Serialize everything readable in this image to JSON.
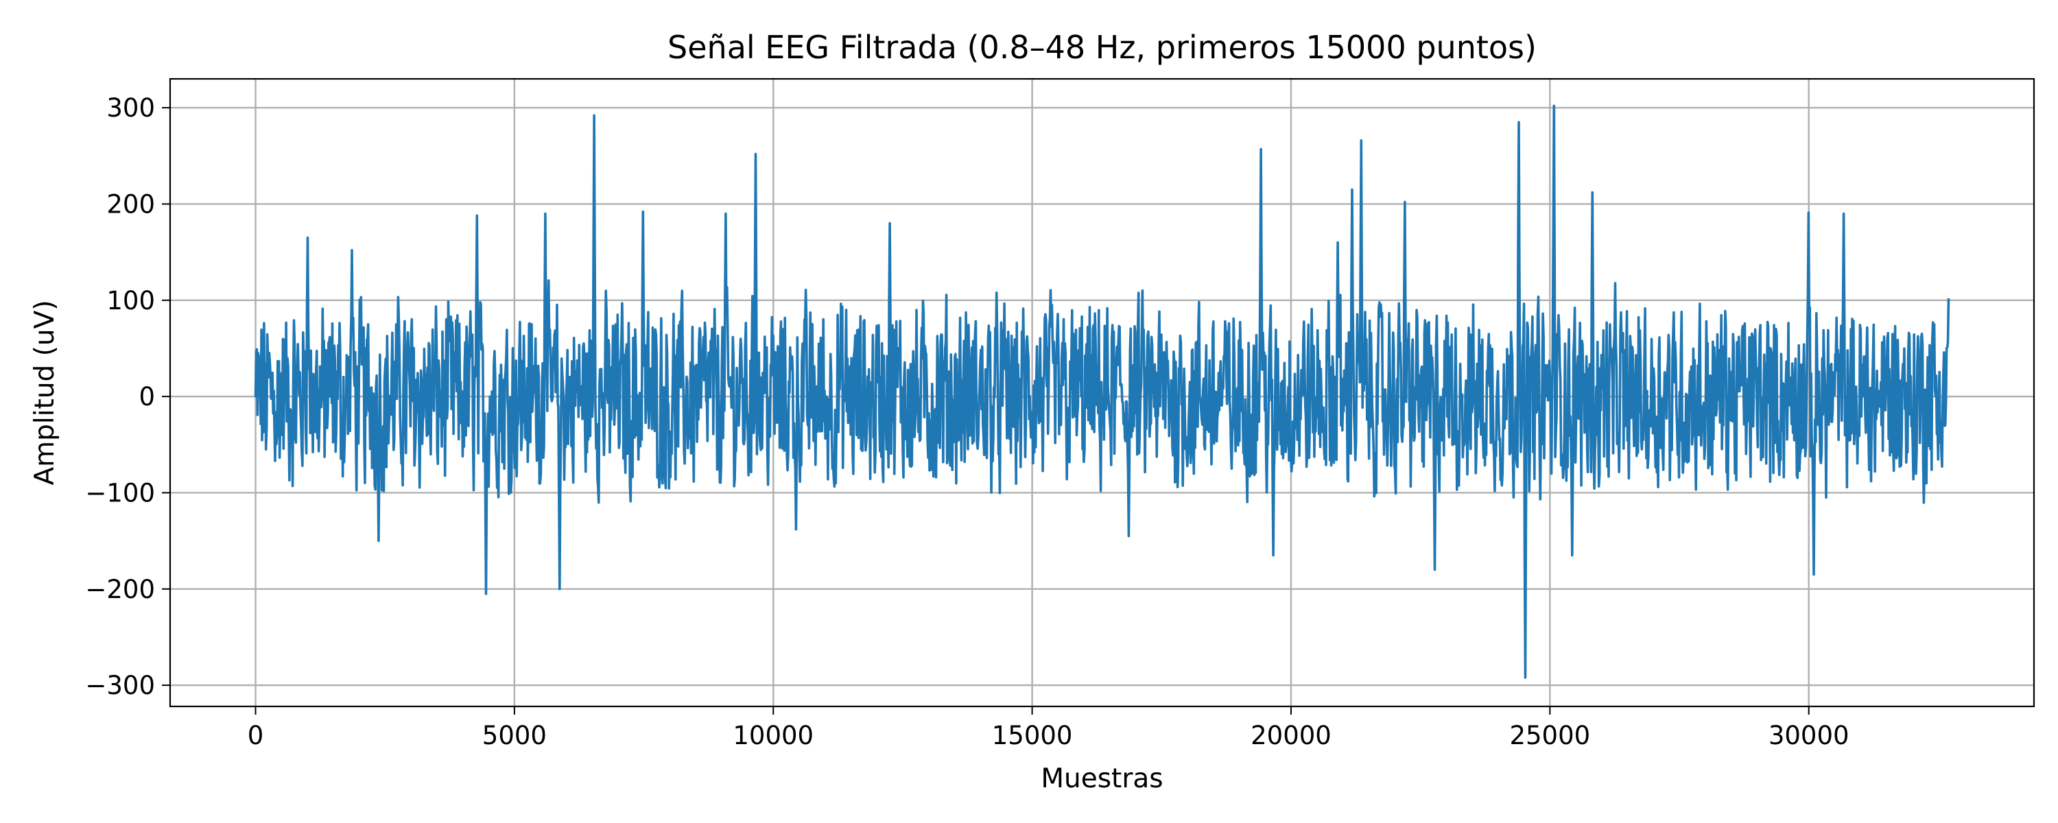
{
  "chart_data": {
    "type": "line",
    "title": "Señal EEG Filtrada (0.8–48 Hz, primeros 15000 puntos)",
    "xlabel": "Muestras",
    "ylabel": "Amplitud (uV)",
    "xlim": [
      -1650,
      34350
    ],
    "ylim": [
      -322,
      330
    ],
    "xticks": [
      0,
      5000,
      10000,
      15000,
      20000,
      25000,
      30000
    ],
    "yticks": [
      -300,
      -200,
      -100,
      0,
      100,
      200,
      300
    ],
    "xtick_labels": [
      "0",
      "5000",
      "10000",
      "15000",
      "20000",
      "25000",
      "30000"
    ],
    "ytick_labels": [
      "−300",
      "−200",
      "−100",
      "0",
      "100",
      "200",
      "300"
    ],
    "grid": true,
    "legend": "none",
    "series": [
      {
        "color": "#1f77b4",
        "x_range": [
          0,
          32700
        ],
        "y_range": [
          -292,
          302
        ],
        "peaks": [
          {
            "x": 1000,
            "y": 165
          },
          {
            "x": 1860,
            "y": 152
          },
          {
            "x": 2380,
            "y": -150
          },
          {
            "x": 4280,
            "y": 188
          },
          {
            "x": 4450,
            "y": -205
          },
          {
            "x": 5600,
            "y": 190
          },
          {
            "x": 5870,
            "y": -200
          },
          {
            "x": 6540,
            "y": 292
          },
          {
            "x": 7480,
            "y": 192
          },
          {
            "x": 9080,
            "y": 190
          },
          {
            "x": 9660,
            "y": 252
          },
          {
            "x": 10440,
            "y": -138
          },
          {
            "x": 12250,
            "y": 180
          },
          {
            "x": 16870,
            "y": -145
          },
          {
            "x": 19420,
            "y": 257
          },
          {
            "x": 19660,
            "y": -165
          },
          {
            "x": 20900,
            "y": 160
          },
          {
            "x": 21180,
            "y": 215
          },
          {
            "x": 21360,
            "y": 266
          },
          {
            "x": 22200,
            "y": 202
          },
          {
            "x": 22780,
            "y": -180
          },
          {
            "x": 24400,
            "y": 285
          },
          {
            "x": 24530,
            "y": -292
          },
          {
            "x": 25080,
            "y": 302
          },
          {
            "x": 25430,
            "y": -165
          },
          {
            "x": 25820,
            "y": 212
          },
          {
            "x": 30000,
            "y": 191
          },
          {
            "x": 30100,
            "y": -185
          },
          {
            "x": 30680,
            "y": 190
          },
          {
            "x": 32700,
            "y": 102
          }
        ]
      }
    ]
  }
}
